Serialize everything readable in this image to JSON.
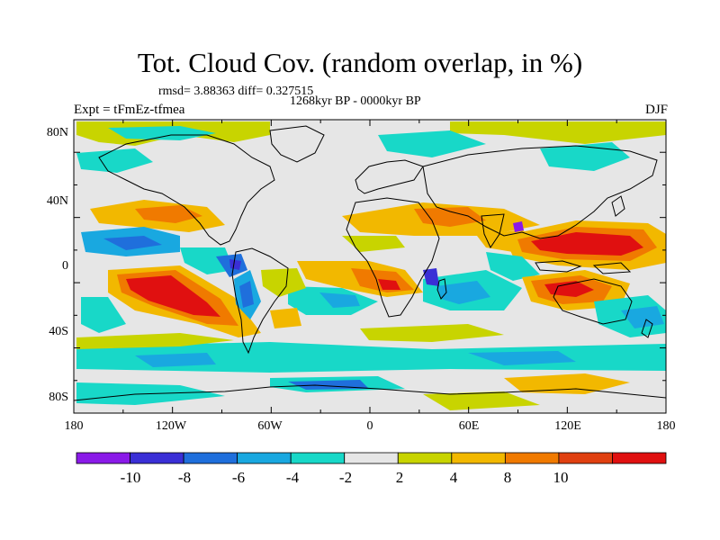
{
  "title": "Tot. Cloud Cov. (random overlap, in %)",
  "stats": "rmsd= 3.88363 diff= 0.327515",
  "subtitle": "1268kyr BP - 0000kyr BP",
  "left_label": "Expt = tFmEz-tfmea",
  "right_label": "DJF",
  "lat_labels": [
    "80N",
    "40N",
    "0",
    "40S",
    "80S"
  ],
  "lon_labels": [
    "180",
    "120W",
    "60W",
    "0",
    "60E",
    "120E",
    "180"
  ],
  "colorbar": {
    "colors": [
      "#8a1ae8",
      "#3a2fd6",
      "#1f6fdc",
      "#19a8e0",
      "#18d8c8",
      "#e6e6e6",
      "#c8d400",
      "#f2b800",
      "#f07a00",
      "#e04010",
      "#e01010"
    ],
    "labels": [
      "-10",
      "-8",
      "-6",
      "-4",
      "-2",
      "2",
      "4",
      "8",
      "10"
    ]
  },
  "map": {
    "background": "#e6e6e6",
    "colors": {
      "neg_strong": "#3a2fd6",
      "neg_med": "#1f6fdc",
      "neg_light": "#19a8e0",
      "neg_weak": "#18d8c8",
      "pos_weak": "#c8d400",
      "pos_light": "#f2b800",
      "pos_med": "#f07a00",
      "pos_strong": "#e01010"
    }
  }
}
